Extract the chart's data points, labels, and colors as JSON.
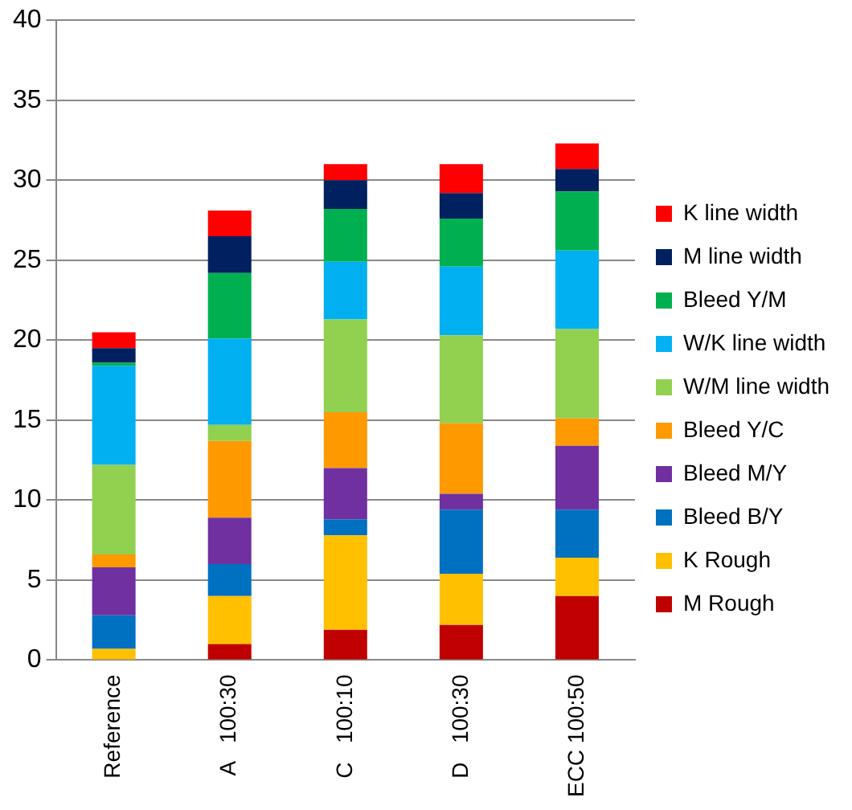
{
  "chart_data": {
    "type": "bar",
    "stacked": true,
    "categories": [
      "Reference",
      "A   100:30",
      "C   100:10",
      "D   100:30",
      "ECC 100:50"
    ],
    "series": [
      {
        "name": "M Rough",
        "color": "#c00000",
        "values": [
          0,
          1.0,
          1.9,
          2.2,
          4.0
        ]
      },
      {
        "name": "K Rough",
        "color": "#ffc000",
        "values": [
          0.7,
          3.0,
          5.9,
          3.2,
          2.4
        ]
      },
      {
        "name": "Bleed B/Y",
        "color": "#0070c0",
        "values": [
          2.1,
          2.0,
          1.0,
          4.0,
          3.0
        ]
      },
      {
        "name": "Bleed M/Y",
        "color": "#7030a0",
        "values": [
          3.0,
          2.9,
          3.2,
          1.0,
          4.0
        ]
      },
      {
        "name": "Bleed Y/C",
        "color": "#ff9900",
        "values": [
          0.8,
          4.8,
          3.5,
          4.4,
          1.7
        ]
      },
      {
        "name": "W/M line width",
        "color": "#92d050",
        "values": [
          5.6,
          1.0,
          5.8,
          5.5,
          5.6
        ]
      },
      {
        "name": "W/K line width",
        "color": "#00b0f0",
        "values": [
          6.2,
          5.4,
          3.6,
          4.3,
          4.9
        ]
      },
      {
        "name": "Bleed Y/M",
        "color": "#00b050",
        "values": [
          0.2,
          4.1,
          3.3,
          3.0,
          3.7
        ]
      },
      {
        "name": "M line width",
        "color": "#002060",
        "values": [
          0.9,
          2.3,
          1.8,
          1.6,
          1.4
        ]
      },
      {
        "name": "K line width",
        "color": "#ff0000",
        "values": [
          1.0,
          1.6,
          1.0,
          1.8,
          1.6
        ]
      }
    ],
    "ylim": [
      0,
      40
    ],
    "yticks": [
      0,
      5,
      10,
      15,
      20,
      25,
      30,
      35,
      40
    ],
    "grid": "y",
    "legend": "right"
  }
}
